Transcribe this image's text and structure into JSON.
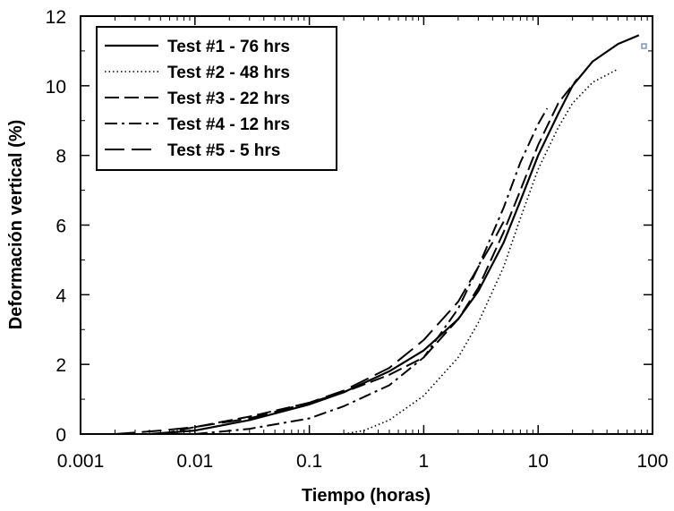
{
  "chart_data": {
    "type": "line",
    "xlabel": "Tiempo (horas)",
    "ylabel": "Deformación vertical (%)",
    "xscale": "log",
    "xlim": [
      0.001,
      100
    ],
    "ylim": [
      0,
      12
    ],
    "x_ticks": [
      0.001,
      0.01,
      0.1,
      1,
      10,
      100
    ],
    "x_tick_labels": [
      "0.001",
      "0.01",
      "0.1",
      "1",
      "10",
      "100"
    ],
    "y_ticks": [
      0,
      2,
      4,
      6,
      8,
      10,
      12
    ],
    "y_tick_labels": [
      "0",
      "2",
      "4",
      "6",
      "8",
      "10",
      "12"
    ],
    "grid": false,
    "legend_position": "top-left",
    "series": [
      {
        "name": "Test #1 - 76 hrs",
        "style": "solid",
        "x": [
          0.004,
          0.01,
          0.03,
          0.1,
          0.2,
          0.5,
          1,
          2,
          3,
          5,
          7,
          10,
          15,
          20,
          30,
          50,
          76
        ],
        "y": [
          0,
          0.1,
          0.4,
          0.85,
          1.2,
          1.8,
          2.4,
          3.3,
          4.1,
          5.5,
          6.7,
          8.0,
          9.2,
          10.0,
          10.7,
          11.2,
          11.45
        ]
      },
      {
        "name": "Test #2 - 48 hrs",
        "style": "dotted",
        "x": [
          0.2,
          0.3,
          0.5,
          1,
          2,
          3,
          5,
          7,
          10,
          15,
          20,
          30,
          48
        ],
        "y": [
          0,
          0.1,
          0.4,
          1.1,
          2.2,
          3.2,
          4.8,
          6.2,
          7.6,
          8.8,
          9.5,
          10.1,
          10.45
        ]
      },
      {
        "name": "Test #3 - 22 hrs",
        "style": "dashed",
        "x": [
          0.005,
          0.01,
          0.03,
          0.1,
          0.2,
          0.5,
          1,
          2,
          3,
          5,
          7,
          10,
          15,
          22
        ],
        "y": [
          0,
          0.2,
          0.5,
          0.9,
          1.2,
          1.7,
          2.2,
          3.3,
          4.2,
          5.8,
          7.0,
          8.3,
          9.5,
          10.2
        ]
      },
      {
        "name": "Test #4 - 12 hrs",
        "style": "dashdot",
        "x": [
          0.01,
          0.03,
          0.1,
          0.2,
          0.5,
          1,
          2,
          3,
          5,
          7,
          10,
          12
        ],
        "y": [
          0,
          0.15,
          0.45,
          0.8,
          1.4,
          2.2,
          3.6,
          4.8,
          6.5,
          7.8,
          8.9,
          9.35
        ]
      },
      {
        "name": "Test #5 - 5 hrs",
        "style": "longdash",
        "x": [
          0.002,
          0.005,
          0.01,
          0.03,
          0.1,
          0.2,
          0.5,
          1,
          2,
          3,
          4,
          5
        ],
        "y": [
          0,
          0.1,
          0.2,
          0.45,
          0.9,
          1.25,
          1.9,
          2.7,
          3.8,
          4.8,
          5.5,
          6.1
        ]
      }
    ]
  }
}
